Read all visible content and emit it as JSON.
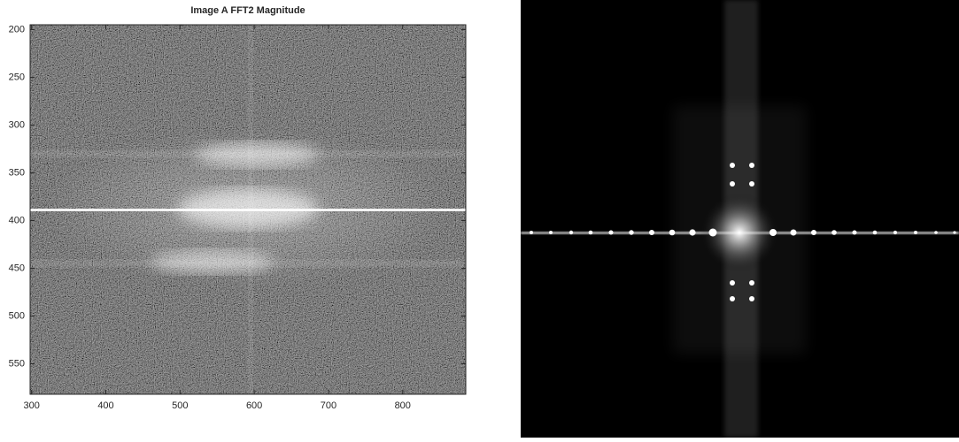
{
  "chart_data": {
    "type": "image",
    "title": "Image A FFT2 Magnitude",
    "xlim": [
      298,
      885
    ],
    "xticks": [
      300,
      400,
      500,
      600,
      700,
      800
    ],
    "ylim": [
      195,
      582
    ],
    "yticks": [
      200,
      250,
      300,
      350,
      400,
      450,
      500,
      550
    ],
    "y_reversed": true
  }
}
